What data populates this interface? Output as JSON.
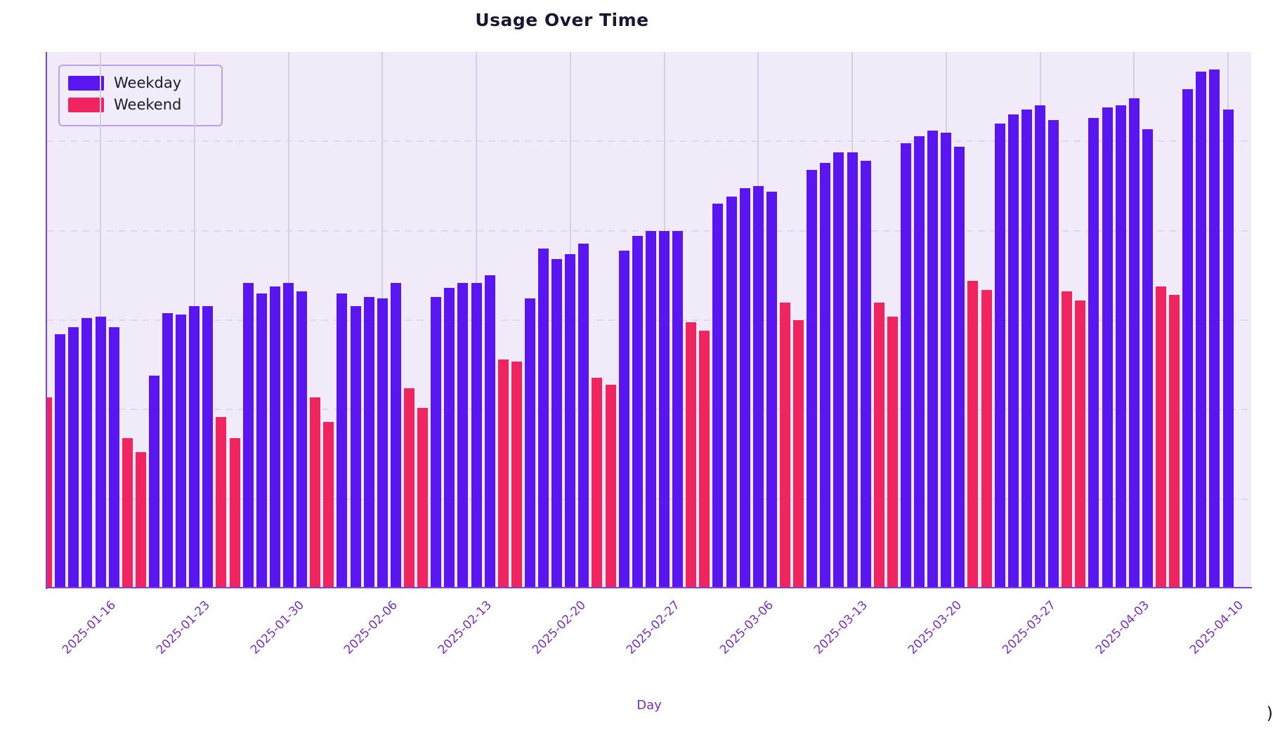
{
  "title": "Usage Over Time",
  "xlabel": "Day",
  "corner_mark": ")",
  "colors": {
    "weekday": "#5a16f0",
    "weekend": "#f02560",
    "plot_background": "#f1ebf9",
    "figure_background": "#ffffff",
    "axis_spine": "#7d44d2",
    "tick_label": "#7a2ec6",
    "title_text": "#1b1530",
    "grid_vertical": "#d6cee2",
    "grid_horizontal_dashed": "#ddd3ee",
    "legend_border": "#b9a2ea"
  },
  "legend": [
    {
      "label": "Weekday",
      "color": "#5a16f0"
    },
    {
      "label": "Weekend",
      "color": "#f02560"
    }
  ],
  "chart_data": {
    "type": "bar",
    "title": "Usage Over Time",
    "xlabel": "Day",
    "ylabel": "",
    "ylim": [
      0,
      300
    ],
    "y_gridline_values": [
      50,
      100,
      150,
      200,
      250
    ],
    "grid": {
      "vertical": "solid weekly lines",
      "horizontal": "faint dashed lines"
    },
    "legend_position": "upper left",
    "x_tick_labels": [
      "2025-01-16",
      "2025-01-23",
      "2025-01-30",
      "2025-02-06",
      "2025-02-13",
      "2025-02-20",
      "2025-02-27",
      "2025-03-06",
      "2025-03-13",
      "2025-03-20",
      "2025-03-27",
      "2025-04-03",
      "2025-04-10"
    ],
    "series_names": [
      "Weekday",
      "Weekend"
    ],
    "days": [
      {
        "date": "2025-01-12",
        "series": "Weekend",
        "value": 107
      },
      {
        "date": "2025-01-13",
        "series": "Weekday",
        "value": 142
      },
      {
        "date": "2025-01-14",
        "series": "Weekday",
        "value": 146
      },
      {
        "date": "2025-01-15",
        "series": "Weekday",
        "value": 151
      },
      {
        "date": "2025-01-16",
        "series": "Weekday",
        "value": 152
      },
      {
        "date": "2025-01-17",
        "series": "Weekday",
        "value": 146
      },
      {
        "date": "2025-01-18",
        "series": "Weekend",
        "value": 84
      },
      {
        "date": "2025-01-19",
        "series": "Weekend",
        "value": 76
      },
      {
        "date": "2025-01-20",
        "series": "Weekday",
        "value": 119
      },
      {
        "date": "2025-01-21",
        "series": "Weekday",
        "value": 154
      },
      {
        "date": "2025-01-22",
        "series": "Weekday",
        "value": 153
      },
      {
        "date": "2025-01-23",
        "series": "Weekday",
        "value": 158
      },
      {
        "date": "2025-01-24",
        "series": "Weekday",
        "value": 158
      },
      {
        "date": "2025-01-25",
        "series": "Weekend",
        "value": 96
      },
      {
        "date": "2025-01-26",
        "series": "Weekend",
        "value": 84
      },
      {
        "date": "2025-01-27",
        "series": "Weekday",
        "value": 171
      },
      {
        "date": "2025-01-28",
        "series": "Weekday",
        "value": 165
      },
      {
        "date": "2025-01-29",
        "series": "Weekday",
        "value": 169
      },
      {
        "date": "2025-01-30",
        "series": "Weekday",
        "value": 171
      },
      {
        "date": "2025-01-31",
        "series": "Weekday",
        "value": 166
      },
      {
        "date": "2025-02-01",
        "series": "Weekend",
        "value": 107
      },
      {
        "date": "2025-02-02",
        "series": "Weekend",
        "value": 93
      },
      {
        "date": "2025-02-03",
        "series": "Weekday",
        "value": 165
      },
      {
        "date": "2025-02-04",
        "series": "Weekday",
        "value": 158
      },
      {
        "date": "2025-02-05",
        "series": "Weekday",
        "value": 163
      },
      {
        "date": "2025-02-06",
        "series": "Weekday",
        "value": 162
      },
      {
        "date": "2025-02-07",
        "series": "Weekday",
        "value": 171
      },
      {
        "date": "2025-02-08",
        "series": "Weekend",
        "value": 112
      },
      {
        "date": "2025-02-09",
        "series": "Weekend",
        "value": 101
      },
      {
        "date": "2025-02-10",
        "series": "Weekday",
        "value": 163
      },
      {
        "date": "2025-02-11",
        "series": "Weekday",
        "value": 168
      },
      {
        "date": "2025-02-12",
        "series": "Weekday",
        "value": 171
      },
      {
        "date": "2025-02-13",
        "series": "Weekday",
        "value": 171
      },
      {
        "date": "2025-02-14",
        "series": "Weekday",
        "value": 175
      },
      {
        "date": "2025-02-15",
        "series": "Weekend",
        "value": 128
      },
      {
        "date": "2025-02-16",
        "series": "Weekend",
        "value": 127
      },
      {
        "date": "2025-02-17",
        "series": "Weekday",
        "value": 162
      },
      {
        "date": "2025-02-18",
        "series": "Weekday",
        "value": 190
      },
      {
        "date": "2025-02-19",
        "series": "Weekday",
        "value": 184
      },
      {
        "date": "2025-02-20",
        "series": "Weekday",
        "value": 187
      },
      {
        "date": "2025-02-21",
        "series": "Weekday",
        "value": 193
      },
      {
        "date": "2025-02-22",
        "series": "Weekend",
        "value": 118
      },
      {
        "date": "2025-02-23",
        "series": "Weekend",
        "value": 114
      },
      {
        "date": "2025-02-24",
        "series": "Weekday",
        "value": 189
      },
      {
        "date": "2025-02-25",
        "series": "Weekday",
        "value": 197
      },
      {
        "date": "2025-02-26",
        "series": "Weekday",
        "value": 200
      },
      {
        "date": "2025-02-27",
        "series": "Weekday",
        "value": 200
      },
      {
        "date": "2025-02-28",
        "series": "Weekday",
        "value": 200
      },
      {
        "date": "2025-03-01",
        "series": "Weekend",
        "value": 149
      },
      {
        "date": "2025-03-02",
        "series": "Weekend",
        "value": 144
      },
      {
        "date": "2025-03-03",
        "series": "Weekday",
        "value": 215
      },
      {
        "date": "2025-03-04",
        "series": "Weekday",
        "value": 219
      },
      {
        "date": "2025-03-05",
        "series": "Weekday",
        "value": 224
      },
      {
        "date": "2025-03-06",
        "series": "Weekday",
        "value": 225
      },
      {
        "date": "2025-03-07",
        "series": "Weekday",
        "value": 222
      },
      {
        "date": "2025-03-08",
        "series": "Weekend",
        "value": 160
      },
      {
        "date": "2025-03-09",
        "series": "Weekend",
        "value": 150
      },
      {
        "date": "2025-03-10",
        "series": "Weekday",
        "value": 234
      },
      {
        "date": "2025-03-11",
        "series": "Weekday",
        "value": 238
      },
      {
        "date": "2025-03-12",
        "series": "Weekday",
        "value": 244
      },
      {
        "date": "2025-03-13",
        "series": "Weekday",
        "value": 244
      },
      {
        "date": "2025-03-14",
        "series": "Weekday",
        "value": 239
      },
      {
        "date": "2025-03-15",
        "series": "Weekend",
        "value": 160
      },
      {
        "date": "2025-03-16",
        "series": "Weekend",
        "value": 152
      },
      {
        "date": "2025-03-17",
        "series": "Weekday",
        "value": 249
      },
      {
        "date": "2025-03-18",
        "series": "Weekday",
        "value": 253
      },
      {
        "date": "2025-03-19",
        "series": "Weekday",
        "value": 256
      },
      {
        "date": "2025-03-20",
        "series": "Weekday",
        "value": 255
      },
      {
        "date": "2025-03-21",
        "series": "Weekday",
        "value": 247
      },
      {
        "date": "2025-03-22",
        "series": "Weekend",
        "value": 172
      },
      {
        "date": "2025-03-23",
        "series": "Weekend",
        "value": 167
      },
      {
        "date": "2025-03-24",
        "series": "Weekday",
        "value": 260
      },
      {
        "date": "2025-03-25",
        "series": "Weekday",
        "value": 265
      },
      {
        "date": "2025-03-26",
        "series": "Weekday",
        "value": 268
      },
      {
        "date": "2025-03-27",
        "series": "Weekday",
        "value": 270
      },
      {
        "date": "2025-03-28",
        "series": "Weekday",
        "value": 262
      },
      {
        "date": "2025-03-29",
        "series": "Weekend",
        "value": 166
      },
      {
        "date": "2025-03-30",
        "series": "Weekend",
        "value": 161
      },
      {
        "date": "2025-03-31",
        "series": "Weekday",
        "value": 263
      },
      {
        "date": "2025-04-01",
        "series": "Weekday",
        "value": 269
      },
      {
        "date": "2025-04-02",
        "series": "Weekday",
        "value": 270
      },
      {
        "date": "2025-04-03",
        "series": "Weekday",
        "value": 274
      },
      {
        "date": "2025-04-04",
        "series": "Weekday",
        "value": 257
      },
      {
        "date": "2025-04-05",
        "series": "Weekend",
        "value": 169
      },
      {
        "date": "2025-04-06",
        "series": "Weekend",
        "value": 164
      },
      {
        "date": "2025-04-07",
        "series": "Weekday",
        "value": 279
      },
      {
        "date": "2025-04-08",
        "series": "Weekday",
        "value": 289
      },
      {
        "date": "2025-04-09",
        "series": "Weekday",
        "value": 290
      },
      {
        "date": "2025-04-10",
        "series": "Weekday",
        "value": 268
      }
    ]
  }
}
